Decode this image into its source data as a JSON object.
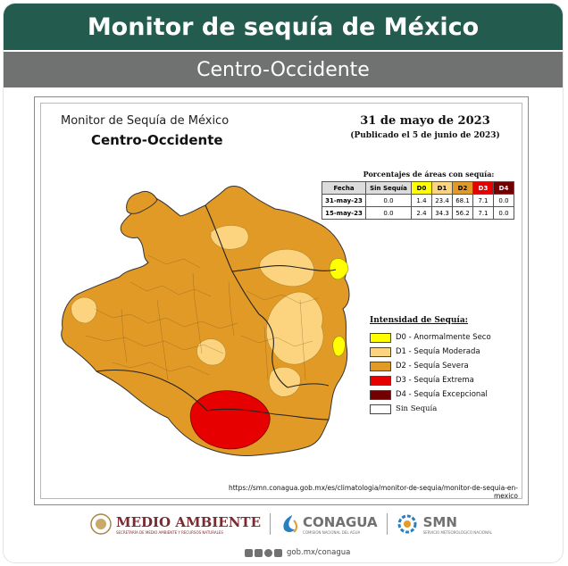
{
  "banner": {
    "title": "Monitor de sequía de México",
    "subtitle": "Centro-Occidente"
  },
  "map": {
    "title_line1": "Monitor de Sequía de México",
    "title_line2": "Centro-Occidente",
    "date": "31 de mayo de 2023",
    "published": "(Publicado el 5 de junio de 2023)",
    "url": "https://smn.conagua.gob.mx/es/climatologia/monitor-de-sequia/monitor-de-sequia-en-mexico",
    "colors": {
      "d0": "#ffff00",
      "d1": "#fcd37f",
      "d2": "#e19a26",
      "d3": "#e60000",
      "d4": "#730000",
      "none": "#ffffff"
    }
  },
  "table": {
    "caption": "Porcentajes de áreas con sequía:",
    "headers": [
      "Fecha",
      "Sin Sequía",
      "D0",
      "D1",
      "D2",
      "D3",
      "D4"
    ],
    "rows": [
      [
        "31-may-23",
        "0.0",
        "1.4",
        "23.4",
        "68.1",
        "7.1",
        "0.0"
      ],
      [
        "15-may-23",
        "0.0",
        "2.4",
        "34.3",
        "56.2",
        "7.1",
        "0.0"
      ]
    ]
  },
  "legend": {
    "title": "Intensidad de Sequía:",
    "items": [
      {
        "label": "D0 - Anormalmente Seco",
        "color": "#ffff00"
      },
      {
        "label": "D1 - Sequía Moderada",
        "color": "#fcd37f"
      },
      {
        "label": "D2 - Sequía Severa",
        "color": "#e19a26"
      },
      {
        "label": "D3 - Sequía Extrema",
        "color": "#e60000"
      },
      {
        "label": "D4 - Sequía Excepcional",
        "color": "#730000"
      },
      {
        "label": "Sin Sequía",
        "color": "#ffffff"
      }
    ]
  },
  "footer": {
    "medio_ambiente": "MEDIO AMBIENTE",
    "medio_ambiente_sub": "SECRETARÍA DE MEDIO AMBIENTE Y RECURSOS NATURALES",
    "conagua": "CONAGUA",
    "conagua_sub": "COMISIÓN NACIONAL DEL AGUA",
    "smn": "SMN",
    "smn_sub": "SERVICIO METEOROLÓGICO NACIONAL",
    "social": "gob.mx/conagua"
  }
}
